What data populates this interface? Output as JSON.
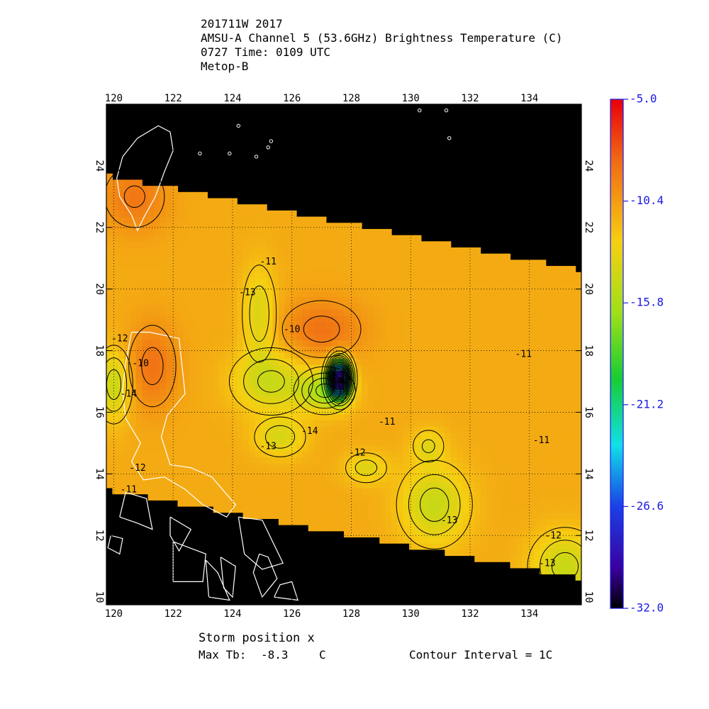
{
  "header": {
    "line1": "201711W 2017",
    "line2": "AMSU-A Channel 5 (53.6GHz) Brightness Temperature (C)",
    "line3": "0727 Time: 0109 UTC",
    "line4": "Metop-B"
  },
  "footer": {
    "storm_position": "Storm position x",
    "max_tb_label": "Max Tb:",
    "max_tb_value": "-8.3",
    "max_tb_unit": "C",
    "contour_interval": "Contour Interval = 1C"
  },
  "colors": {
    "land_outline": "#ffffff",
    "missing": "#000000",
    "contour": "#000000",
    "colorbar_tick_text": "#1a1ae6"
  },
  "chart_data": {
    "type": "heatmap",
    "title": "AMSU-A Channel 5 (53.6GHz) Brightness Temperature (C)",
    "xlabel": "",
    "ylabel": "",
    "xlim": [
      119.75,
      135.75
    ],
    "ylim": [
      9.75,
      26.0
    ],
    "x_ticks": [
      "120",
      "122",
      "124",
      "126",
      "128",
      "130",
      "132",
      "134"
    ],
    "y_ticks": [
      "10",
      "12",
      "14",
      "16",
      "18",
      "20",
      "22",
      "24"
    ],
    "grid": true,
    "colorbar": {
      "min": -32.0,
      "max": -5.0,
      "tick_labels": [
        "-5.0",
        "-10.4",
        "-15.8",
        "-21.2",
        "-26.6",
        "-32.0"
      ],
      "tick_values": [
        -5.0,
        -10.4,
        -15.8,
        -21.2,
        -26.6,
        -32.0
      ]
    },
    "swath": {
      "top_edge": [
        [
          119.75,
          23.7
        ],
        [
          135.75,
          20.6
        ]
      ],
      "bottom_edge": [
        [
          119.75,
          13.5
        ],
        [
          135.75,
          10.6
        ]
      ]
    },
    "field": {
      "background_tb": -11.0,
      "features": [
        {
          "lon": 127.6,
          "lat": 17.1,
          "tb": -30.0,
          "sx": 0.25,
          "sy": 0.42
        },
        {
          "lon": 127.1,
          "lat": 16.7,
          "tb": -15.5,
          "sx": 0.6,
          "sy": 0.45
        },
        {
          "lon": 125.3,
          "lat": 17.0,
          "tb": -14.4,
          "sx": 0.9,
          "sy": 0.7
        },
        {
          "lon": 124.9,
          "lat": 19.2,
          "tb": -13.8,
          "sx": 0.4,
          "sy": 1.1
        },
        {
          "lon": 125.6,
          "lat": 15.2,
          "tb": -13.8,
          "sx": 0.6,
          "sy": 0.45
        },
        {
          "lon": 130.8,
          "lat": 13.0,
          "tb": -14.6,
          "sx": 0.8,
          "sy": 0.9
        },
        {
          "lon": 128.5,
          "lat": 14.2,
          "tb": -13.6,
          "sx": 0.5,
          "sy": 0.35
        },
        {
          "lon": 130.6,
          "lat": 14.9,
          "tb": -13.3,
          "sx": 0.4,
          "sy": 0.4
        },
        {
          "lon": 120.0,
          "lat": 16.9,
          "tb": -14.6,
          "sx": 0.4,
          "sy": 0.8
        },
        {
          "lon": 135.2,
          "lat": 11.0,
          "tb": -14.5,
          "sx": 0.8,
          "sy": 0.8
        },
        {
          "lon": 127.0,
          "lat": 18.7,
          "tb": -8.6,
          "sx": 1.0,
          "sy": 0.7
        },
        {
          "lon": 121.3,
          "lat": 17.5,
          "tb": -8.6,
          "sx": 0.6,
          "sy": 1.0
        },
        {
          "lon": 120.7,
          "lat": 23.0,
          "tb": -8.8,
          "sx": 0.8,
          "sy": 0.8
        }
      ]
    },
    "contour_labels": [
      {
        "text": "-11",
        "lon": 125.2,
        "lat": 20.8
      },
      {
        "text": "-13",
        "lon": 124.5,
        "lat": 19.8
      },
      {
        "text": "-10",
        "lon": 126.0,
        "lat": 18.6
      },
      {
        "text": "-12",
        "lon": 120.2,
        "lat": 18.3
      },
      {
        "text": "-10",
        "lon": 120.9,
        "lat": 17.5
      },
      {
        "text": "-14",
        "lon": 120.5,
        "lat": 16.5
      },
      {
        "text": "-14",
        "lon": 126.6,
        "lat": 15.3
      },
      {
        "text": "-13",
        "lon": 125.2,
        "lat": 14.8
      },
      {
        "text": "-12",
        "lon": 128.2,
        "lat": 14.6
      },
      {
        "text": "-11",
        "lon": 129.2,
        "lat": 15.6
      },
      {
        "text": "-12",
        "lon": 120.8,
        "lat": 14.1
      },
      {
        "text": "-11",
        "lon": 120.5,
        "lat": 13.4
      },
      {
        "text": "-11",
        "lon": 133.8,
        "lat": 17.8
      },
      {
        "text": "-11",
        "lon": 134.4,
        "lat": 15.0
      },
      {
        "text": "-13",
        "lon": 131.3,
        "lat": 12.4
      },
      {
        "text": "-12",
        "lon": 134.8,
        "lat": 11.9
      },
      {
        "text": "-13",
        "lon": 134.6,
        "lat": 11.0
      }
    ]
  }
}
